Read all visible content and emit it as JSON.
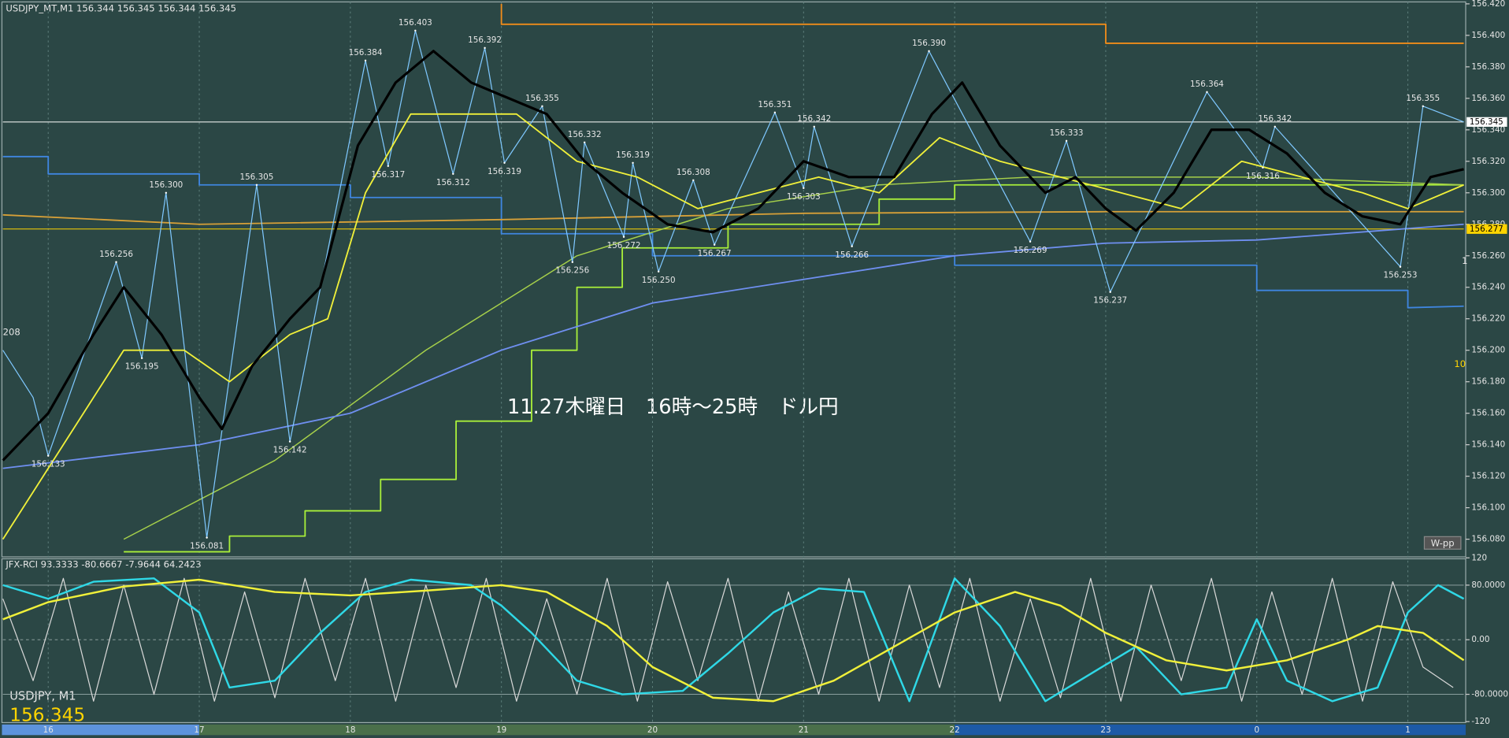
{
  "chart_data": [
    {
      "type": "line",
      "title": "USDJPY_MT,M1  156.344 156.345 156.344 156.345",
      "annotation": "11.27木曜日　16時～25時　ドル円",
      "button_label": "W-pp",
      "edge_texts": [
        "208",
        "1",
        "10"
      ],
      "xlim": [
        15.7,
        25.37
      ],
      "xticks": [
        16,
        17,
        18,
        19,
        20,
        21,
        22,
        23,
        {
          "value": 24,
          "label": "0"
        },
        {
          "value": 25,
          "label": "1"
        }
      ],
      "ylim": [
        156.07,
        156.42
      ],
      "yticks": [
        {
          "value": 156.08,
          "label": "156.080"
        },
        {
          "value": 156.1,
          "label": "156.100"
        },
        {
          "value": 156.12,
          "label": "156.120"
        },
        {
          "value": 156.14,
          "label": "156.140"
        },
        {
          "value": 156.16,
          "label": "156.160"
        },
        {
          "value": 156.18,
          "label": "156.180"
        },
        {
          "value": 156.2,
          "label": "156.200"
        },
        {
          "value": 156.22,
          "label": "156.220"
        },
        {
          "value": 156.24,
          "label": "156.240"
        },
        {
          "value": 156.26,
          "label": "156.260"
        },
        {
          "value": 156.28,
          "label": "156.280"
        },
        {
          "value": 156.3,
          "label": "156.300"
        },
        {
          "value": 156.32,
          "label": "156.320"
        },
        {
          "value": 156.34,
          "label": "156.340"
        },
        {
          "value": 156.36,
          "label": "156.360"
        },
        {
          "value": 156.38,
          "label": "156.380"
        },
        {
          "value": 156.4,
          "label": "156.400"
        },
        {
          "value": 156.42,
          "label": "156.420"
        }
      ],
      "grid": true,
      "price_lines": [
        {
          "value": 156.345,
          "label": "156.345",
          "color": "#ffffff"
        },
        {
          "value": 156.277,
          "label": "156.277",
          "color": "#ffd400"
        }
      ],
      "extremes": [
        {
          "x": 16.0,
          "value": 156.133,
          "label": "156.133"
        },
        {
          "x": 16.45,
          "value": 156.256,
          "label": "156.256"
        },
        {
          "x": 16.62,
          "value": 156.195,
          "label": "156.195"
        },
        {
          "x": 16.78,
          "value": 156.3,
          "label": "156.300"
        },
        {
          "x": 17.05,
          "value": 156.081,
          "label": "156.081"
        },
        {
          "x": 17.38,
          "value": 156.305,
          "label": "156.305"
        },
        {
          "x": 17.6,
          "value": 156.142,
          "label": "156.142"
        },
        {
          "x": 18.1,
          "value": 156.384,
          "label": "156.384"
        },
        {
          "x": 18.25,
          "value": 156.317,
          "label": "156.317"
        },
        {
          "x": 18.43,
          "value": 156.403,
          "label": "156.403"
        },
        {
          "x": 18.68,
          "value": 156.312,
          "label": "156.312"
        },
        {
          "x": 18.89,
          "value": 156.392,
          "label": "156.392"
        },
        {
          "x": 19.02,
          "value": 156.319,
          "label": "156.319"
        },
        {
          "x": 19.27,
          "value": 156.355,
          "label": "156.355"
        },
        {
          "x": 19.47,
          "value": 156.256,
          "label": "156.256"
        },
        {
          "x": 19.55,
          "value": 156.332,
          "label": "156.332"
        },
        {
          "x": 19.81,
          "value": 156.272,
          "label": "156.272"
        },
        {
          "x": 19.87,
          "value": 156.319,
          "label": "156.319"
        },
        {
          "x": 20.04,
          "value": 156.25,
          "label": "156.250"
        },
        {
          "x": 20.27,
          "value": 156.308,
          "label": "156.308"
        },
        {
          "x": 20.41,
          "value": 156.267,
          "label": "156.267"
        },
        {
          "x": 20.81,
          "value": 156.351,
          "label": "156.351"
        },
        {
          "x": 21.0,
          "value": 156.303,
          "label": "156.303"
        },
        {
          "x": 21.07,
          "value": 156.342,
          "label": "156.342"
        },
        {
          "x": 21.32,
          "value": 156.266,
          "label": "156.266"
        },
        {
          "x": 21.83,
          "value": 156.39,
          "label": "156.390"
        },
        {
          "x": 22.5,
          "value": 156.269,
          "label": "156.269"
        },
        {
          "x": 22.74,
          "value": 156.333,
          "label": "156.333"
        },
        {
          "x": 23.03,
          "value": 156.237,
          "label": "156.237"
        },
        {
          "x": 23.67,
          "value": 156.364,
          "label": "156.364"
        },
        {
          "x": 24.04,
          "value": 156.316,
          "label": "156.316"
        },
        {
          "x": 24.12,
          "value": 156.342,
          "label": "156.342"
        },
        {
          "x": 24.95,
          "value": 156.253,
          "label": "156.253"
        },
        {
          "x": 25.1,
          "value": 156.355,
          "label": "156.355"
        }
      ],
      "series": [
        {
          "color": "#3f86e0",
          "width": 1.5,
          "x": [
            15.7,
            16.0,
            16.0,
            17.0,
            17.0,
            18.0,
            18.0,
            19.0,
            19.0,
            20.0,
            20.0,
            22.0,
            22.0,
            24.0,
            24.0,
            25.0,
            25.0,
            25.37
          ],
          "values": [
            156.323,
            156.323,
            156.312,
            156.312,
            156.305,
            156.305,
            156.297,
            156.297,
            156.274,
            156.274,
            156.26,
            156.26,
            156.254,
            156.254,
            156.238,
            156.238,
            156.227,
            156.228
          ]
        },
        {
          "color": "#f08c1a",
          "width": 1.5,
          "x": [
            19.0,
            19.0,
            23.0,
            23.0,
            25.37
          ],
          "values": [
            156.42,
            156.407,
            156.407,
            156.395,
            156.395
          ]
        },
        {
          "color": "#a8ee3a",
          "width": 1.5,
          "x": [
            16.5,
            17.2,
            17.2,
            17.7,
            17.7,
            18.2,
            18.2,
            18.7,
            18.7,
            19.2,
            19.2,
            19.5,
            19.5,
            19.8,
            19.8,
            20.5,
            20.5,
            21.5,
            21.5,
            22.0,
            22.0,
            25.37
          ],
          "values": [
            156.072,
            156.072,
            156.082,
            156.082,
            156.098,
            156.098,
            156.118,
            156.118,
            156.155,
            156.155,
            156.2,
            156.2,
            156.24,
            156.24,
            156.265,
            156.265,
            156.28,
            156.28,
            156.296,
            156.296,
            156.305,
            156.305
          ]
        },
        {
          "color": "#a6d04a",
          "width": 1.2,
          "x": [
            16.5,
            17.5,
            18.5,
            19.5,
            20.5,
            21.5,
            22.5,
            24.0,
            25.37
          ],
          "values": [
            156.08,
            156.13,
            156.2,
            156.26,
            156.29,
            156.305,
            156.31,
            156.31,
            156.305
          ]
        },
        {
          "color": "#d7a038",
          "width": 1.5,
          "x": [
            15.7,
            17.0,
            19.0,
            21.0,
            23.0,
            25.37
          ],
          "values": [
            156.286,
            156.28,
            156.283,
            156.287,
            156.288,
            156.288
          ]
        },
        {
          "color": "#6f8ff0",
          "width": 1.5,
          "x": [
            15.7,
            17.0,
            18.0,
            19.0,
            20.0,
            21.0,
            22.0,
            23.0,
            24.0,
            25.37
          ],
          "values": [
            156.125,
            156.14,
            156.16,
            156.2,
            156.23,
            156.245,
            156.26,
            156.268,
            156.27,
            156.28
          ]
        },
        {
          "color": "#7fc8ff",
          "width": 1,
          "x": [
            15.7,
            15.9,
            16.0,
            16.45,
            16.62,
            16.78,
            17.05,
            17.38,
            17.6,
            18.1,
            18.25,
            18.43,
            18.68,
            18.89,
            19.02,
            19.27,
            19.47,
            19.55,
            19.81,
            19.87,
            20.04,
            20.27,
            20.41,
            20.81,
            21.0,
            21.07,
            21.32,
            21.83,
            22.5,
            22.74,
            23.03,
            23.67,
            24.04,
            24.12,
            24.95,
            25.1,
            25.37
          ],
          "values": [
            156.2,
            156.17,
            156.133,
            156.256,
            156.195,
            156.3,
            156.081,
            156.305,
            156.142,
            156.384,
            156.317,
            156.403,
            156.312,
            156.392,
            156.319,
            156.355,
            156.256,
            156.332,
            156.272,
            156.319,
            156.25,
            156.308,
            156.267,
            156.351,
            156.303,
            156.342,
            156.266,
            156.39,
            156.269,
            156.333,
            156.237,
            156.364,
            156.316,
            156.342,
            156.253,
            156.355,
            156.345
          ]
        },
        {
          "color": "#f0f03a",
          "width": 1.5,
          "x": [
            15.7,
            16.1,
            16.5,
            16.9,
            17.2,
            17.6,
            17.85,
            18.1,
            18.4,
            18.7,
            19.1,
            19.5,
            19.9,
            20.3,
            20.7,
            21.1,
            21.5,
            21.9,
            22.3,
            22.7,
            23.1,
            23.5,
            23.9,
            24.3,
            24.7,
            25.0,
            25.37
          ],
          "values": [
            156.08,
            156.14,
            156.2,
            156.2,
            156.18,
            156.21,
            156.22,
            156.3,
            156.35,
            156.35,
            156.35,
            156.32,
            156.31,
            156.29,
            156.3,
            156.31,
            156.3,
            156.335,
            156.32,
            156.31,
            156.3,
            156.29,
            156.32,
            156.31,
            156.3,
            156.29,
            156.305
          ]
        },
        {
          "color": "#000000",
          "width": 2.6,
          "x": [
            15.7,
            16.0,
            16.3,
            16.5,
            16.75,
            17.0,
            17.15,
            17.35,
            17.6,
            17.8,
            18.05,
            18.3,
            18.55,
            18.8,
            19.05,
            19.3,
            19.55,
            19.8,
            20.1,
            20.4,
            20.7,
            21.0,
            21.3,
            21.6,
            21.85,
            22.05,
            22.3,
            22.6,
            22.8,
            23.0,
            23.2,
            23.45,
            23.7,
            23.95,
            24.2,
            24.45,
            24.7,
            24.95,
            25.15,
            25.37
          ],
          "values": [
            156.13,
            156.16,
            156.21,
            156.24,
            156.21,
            156.17,
            156.15,
            156.19,
            156.22,
            156.24,
            156.33,
            156.37,
            156.39,
            156.37,
            156.36,
            156.35,
            156.32,
            156.3,
            156.28,
            156.275,
            156.29,
            156.32,
            156.31,
            156.31,
            156.35,
            156.37,
            156.33,
            156.3,
            156.31,
            156.29,
            156.276,
            156.3,
            156.34,
            156.34,
            156.325,
            156.3,
            156.285,
            156.28,
            156.31,
            156.315
          ]
        }
      ]
    },
    {
      "type": "line",
      "title": "JFX-RCI 93.3333 -80.6667 -7.9644 64.2423",
      "symbol": "USDJPY, M1",
      "price": 156.345,
      "xlim": [
        15.7,
        25.37
      ],
      "ylim": [
        -120,
        120
      ],
      "yticks": [
        -120,
        {
          "value": -80,
          "label": "-80.0000"
        },
        {
          "value": 0,
          "label": "0.00"
        },
        {
          "value": 80,
          "label": "80.0000"
        },
        120
      ],
      "series": [
        {
          "color": "#d8d8d8",
          "width": 1,
          "x": [
            15.7,
            15.9,
            16.1,
            16.3,
            16.5,
            16.7,
            16.9,
            17.1,
            17.3,
            17.5,
            17.7,
            17.9,
            18.1,
            18.3,
            18.5,
            18.7,
            18.9,
            19.1,
            19.3,
            19.5,
            19.7,
            19.9,
            20.1,
            20.3,
            20.5,
            20.7,
            20.9,
            21.1,
            21.3,
            21.5,
            21.7,
            21.9,
            22.1,
            22.3,
            22.5,
            22.7,
            22.9,
            23.1,
            23.3,
            23.5,
            23.7,
            23.9,
            24.1,
            24.3,
            24.5,
            24.7,
            24.9,
            25.1,
            25.3
          ],
          "values": [
            60,
            -60,
            90,
            -90,
            80,
            -80,
            90,
            -90,
            70,
            -85,
            90,
            -60,
            90,
            -90,
            80,
            -70,
            90,
            -90,
            60,
            -80,
            90,
            -90,
            85,
            -60,
            90,
            -90,
            70,
            -80,
            90,
            -90,
            80,
            -70,
            90,
            -90,
            60,
            -85,
            90,
            -90,
            80,
            -60,
            90,
            -90,
            70,
            -80,
            90,
            -90,
            85,
            -40,
            -70
          ]
        },
        {
          "color": "#2fd8e6",
          "width": 2,
          "x": [
            15.7,
            16.0,
            16.3,
            16.7,
            17.0,
            17.2,
            17.5,
            17.8,
            18.1,
            18.4,
            18.8,
            19.0,
            19.2,
            19.5,
            19.8,
            20.2,
            20.5,
            20.8,
            21.1,
            21.4,
            21.7,
            22.0,
            22.3,
            22.6,
            22.9,
            23.2,
            23.5,
            23.8,
            24.0,
            24.2,
            24.5,
            24.8,
            25.0,
            25.2,
            25.37
          ],
          "values": [
            80,
            60,
            85,
            90,
            40,
            -70,
            -60,
            10,
            70,
            88,
            80,
            50,
            10,
            -60,
            -80,
            -75,
            -20,
            40,
            75,
            70,
            -90,
            90,
            20,
            -90,
            -50,
            -10,
            -80,
            -70,
            30,
            -60,
            -90,
            -70,
            40,
            80,
            60
          ]
        },
        {
          "color": "#f0f03a",
          "width": 2,
          "x": [
            15.7,
            16.0,
            16.5,
            17.0,
            17.5,
            18.0,
            18.5,
            19.0,
            19.3,
            19.7,
            20.0,
            20.4,
            20.8,
            21.2,
            21.6,
            22.0,
            22.4,
            22.7,
            23.0,
            23.4,
            23.8,
            24.2,
            24.6,
            24.8,
            25.1,
            25.37
          ],
          "values": [
            30,
            55,
            78,
            88,
            70,
            65,
            72,
            80,
            70,
            20,
            -40,
            -85,
            -90,
            -60,
            -10,
            40,
            70,
            50,
            10,
            -30,
            -45,
            -30,
            0,
            20,
            10,
            -30
          ]
        }
      ]
    }
  ]
}
